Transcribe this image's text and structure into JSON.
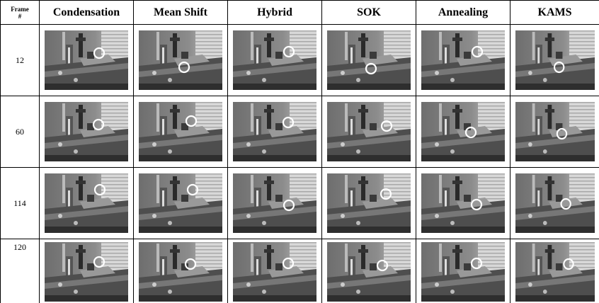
{
  "table": {
    "header": [
      "Frame #",
      "Condensation",
      "Mean Shift",
      "Hybrid",
      "SOK",
      "Annealing",
      "KAMS"
    ],
    "rows": [
      "12",
      "60",
      "114",
      "120"
    ]
  }
}
